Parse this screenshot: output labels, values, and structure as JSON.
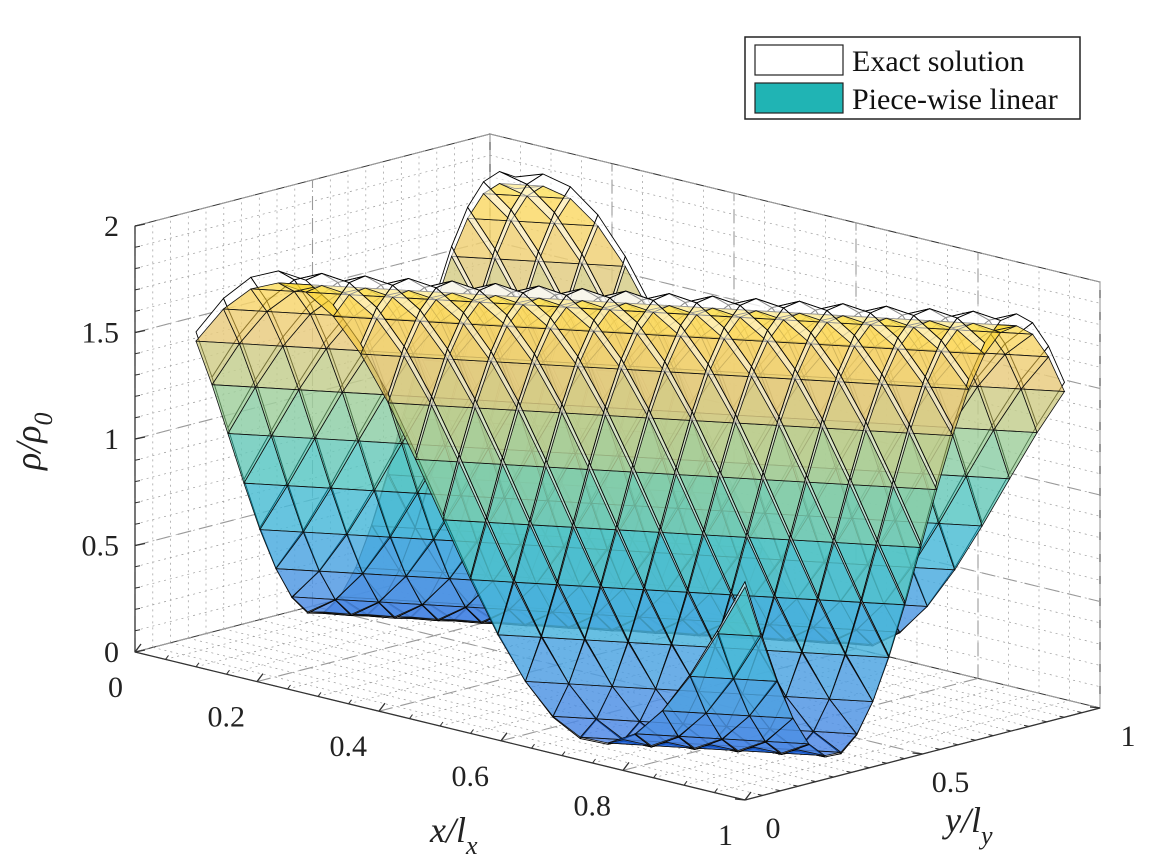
{
  "chart_data": {
    "type": "surface",
    "title": "",
    "xlabel": {
      "base": "x/l",
      "sub": "x"
    },
    "ylabel": {
      "base": "y/l",
      "sub": "y"
    },
    "zlabel": {
      "base": "ρ/ρ",
      "sub": "0"
    },
    "xlim": [
      0,
      1
    ],
    "ylim": [
      0,
      1
    ],
    "zlim": [
      0,
      2
    ],
    "x_ticks": [
      0,
      0.2,
      0.4,
      0.6,
      0.8,
      1
    ],
    "x_tick_labels": [
      "0",
      "0.2",
      "0.4",
      "0.6",
      "0.8",
      "1"
    ],
    "y_ticks": [
      0,
      0.5,
      1
    ],
    "y_tick_labels": [
      "0",
      "0.5",
      "1"
    ],
    "z_ticks": [
      0,
      0.5,
      1,
      1.5,
      2
    ],
    "z_tick_labels": [
      "0",
      "0.5",
      "1",
      "1.5",
      "2"
    ],
    "function": "rho/rho0 = 1 + 0.9 * sin(2*pi*(x - y))",
    "x_range": [
      0.1,
      1.0
    ],
    "y_range": [
      0.0,
      0.9
    ],
    "grid_n": 20,
    "grid": "on",
    "series": [
      {
        "name": "Exact solution",
        "style": "white faces, black mesh"
      },
      {
        "name": "Piece-wise linear",
        "style": "parula-colored faces, black edges, semi-transparent"
      }
    ],
    "legend": {
      "position": "top-right",
      "entries": [
        "Exact solution",
        "Piece-wise linear"
      ]
    },
    "colors": {
      "legend_exact": "#ffffff",
      "legend_linear": "#20b4b4",
      "grid": "#9a9a9a",
      "axis": "#333333"
    }
  }
}
